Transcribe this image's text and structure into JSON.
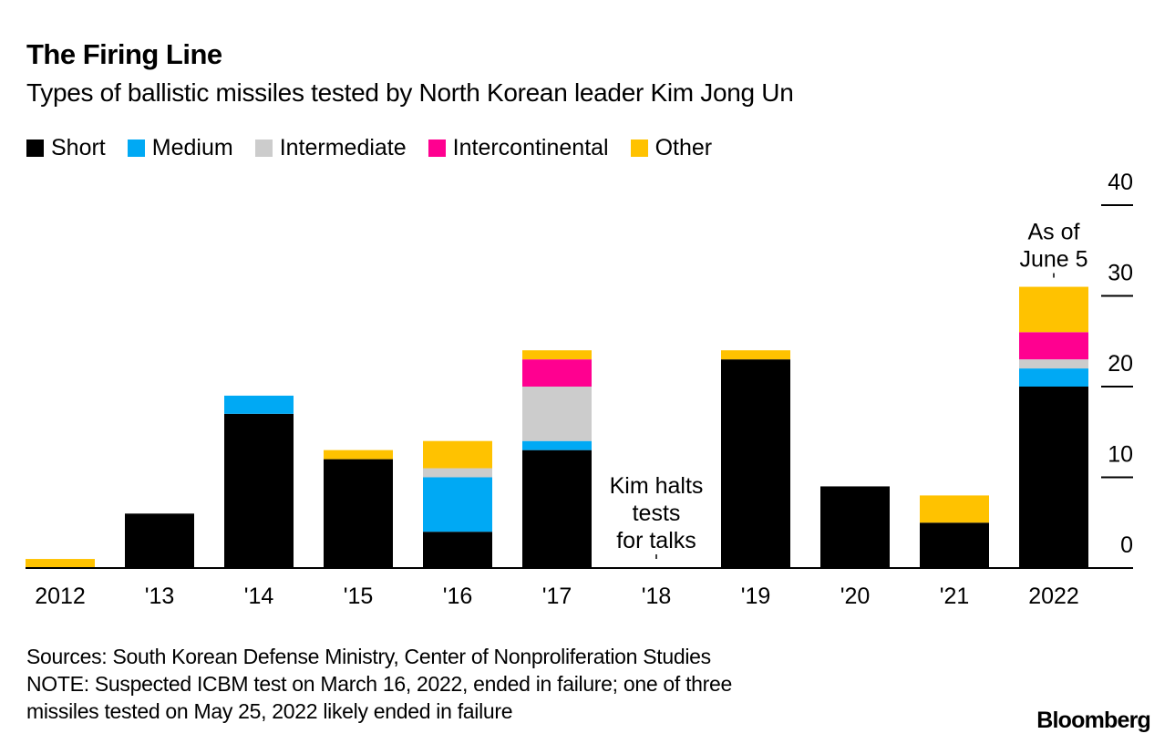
{
  "header": {
    "title": "The Firing Line",
    "subtitle": "Types of ballistic missiles tested by North Korean leader Kim Jong Un"
  },
  "footer": {
    "sources": "Sources: South Korean Defense Ministry, Center of Nonproliferation Studies",
    "note_line1": "NOTE: Suspected ICBM test on March 16, 2022, ended in failure; one of three",
    "note_line2": "missiles tested on May 25, 2022 likely ended in failure",
    "brand": "Bloomberg"
  },
  "chart_data": {
    "type": "bar",
    "stacked": true,
    "title": "The Firing Line",
    "subtitle": "Types of ballistic missiles tested by North Korean leader Kim Jong Un",
    "xlabel": "",
    "ylabel": "",
    "ylim": [
      0,
      40
    ],
    "yticks": [
      0,
      10,
      20,
      30,
      40
    ],
    "y_axis_position": "right",
    "legend_position": "top-left",
    "grid": false,
    "categories": [
      "2012",
      "'13",
      "'14",
      "'15",
      "'16",
      "'17",
      "'18",
      "'19",
      "'20",
      "'21",
      "2022"
    ],
    "series": [
      {
        "name": "Short",
        "color": "#000000",
        "values": [
          0,
          6,
          17,
          12,
          4,
          13,
          0,
          23,
          9,
          5,
          20
        ]
      },
      {
        "name": "Medium",
        "color": "#00a9f4",
        "values": [
          0,
          0,
          2,
          0,
          6,
          1,
          0,
          0,
          0,
          0,
          2
        ]
      },
      {
        "name": "Intermediate",
        "color": "#cccccc",
        "values": [
          0,
          0,
          0,
          0,
          1,
          6,
          0,
          0,
          0,
          0,
          1
        ]
      },
      {
        "name": "Intercontinental",
        "color": "#ff0090",
        "values": [
          0,
          0,
          0,
          0,
          0,
          3,
          0,
          0,
          0,
          0,
          3
        ]
      },
      {
        "name": "Other",
        "color": "#ffc200",
        "values": [
          1,
          0,
          0,
          1,
          3,
          1,
          0,
          1,
          0,
          3,
          5
        ]
      }
    ],
    "annotations": [
      {
        "category": "'18",
        "lines": [
          "Kim halts",
          "tests",
          "for talks"
        ]
      },
      {
        "category": "2022",
        "lines": [
          "As of",
          "June 5"
        ]
      }
    ]
  }
}
